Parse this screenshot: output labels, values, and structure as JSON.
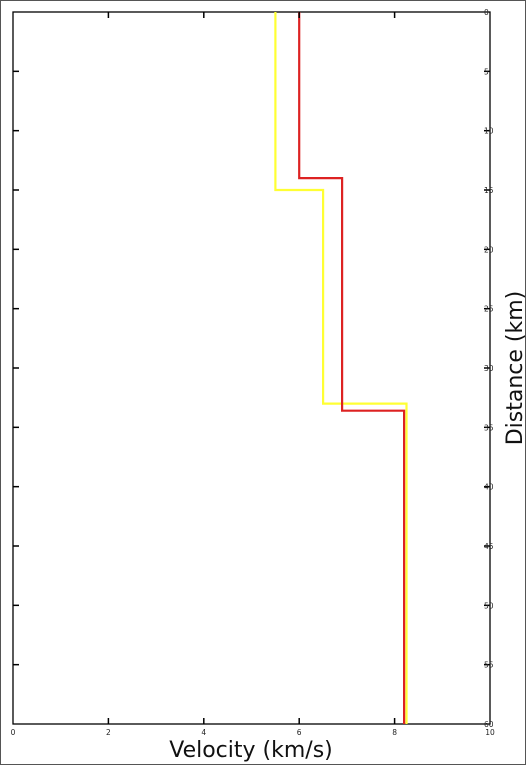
{
  "chart_data": {
    "type": "line",
    "title": "",
    "xlabel": "Velocity (km/s)",
    "ylabel": "Distance (km)",
    "xlim": [
      0,
      10
    ],
    "ylim": [
      0,
      60
    ],
    "y_inverted": true,
    "y_axis_position": "right",
    "grid": false,
    "legend": "none",
    "x_ticks": [
      0,
      2,
      4,
      6,
      8,
      10
    ],
    "y_ticks": [
      0,
      5,
      10,
      15,
      20,
      25,
      30,
      35,
      40,
      45,
      50,
      55,
      60
    ],
    "series": [
      {
        "color": "#ffff33",
        "points": [
          [
            5.5,
            0
          ],
          [
            5.5,
            15
          ],
          [
            6.5,
            15
          ],
          [
            6.5,
            33
          ],
          [
            8.25,
            33
          ],
          [
            8.25,
            60
          ]
        ]
      },
      {
        "color": "#dd2222",
        "points": [
          [
            6.0,
            0
          ],
          [
            6.0,
            14
          ],
          [
            6.9,
            14
          ],
          [
            6.9,
            33.6
          ],
          [
            8.2,
            33.6
          ],
          [
            8.2,
            60
          ]
        ]
      }
    ]
  }
}
